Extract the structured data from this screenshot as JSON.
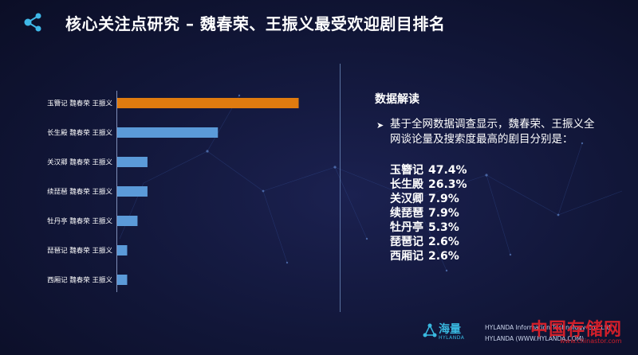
{
  "header": {
    "title": "核心关注点研究 – 魏春荣、王振义最受欢迎剧目排名"
  },
  "colors": {
    "highlight_bar": "#df7b0f",
    "default_bar": "#5b9ad8",
    "accent": "#39b9e0"
  },
  "chart_data": {
    "type": "bar",
    "orientation": "horizontal",
    "categories": [
      "玉簪记 魏春荣 王振义",
      "长生殿 魏春荣 王振义",
      "关汉卿 魏春荣 王振义",
      "续琵琶 魏春荣 王振义",
      "牡丹亭 魏春荣 王振义",
      "琵琶记 魏春荣 王振义",
      "西厢记 魏春荣 王振义"
    ],
    "values": [
      47.4,
      26.3,
      7.9,
      7.9,
      5.3,
      2.6,
      2.6
    ],
    "xlim": [
      0,
      50
    ],
    "grid": false,
    "highlight_index": 0
  },
  "panel": {
    "heading": "数据解读",
    "bullet_icon": "arrow-right-icon",
    "intro": "基于全网数据调查显示，魏春荣、王振义全网谈论量及搜索度最高的剧目分别是：",
    "items": [
      {
        "name": "玉簪记",
        "value": "47.4%"
      },
      {
        "name": "长生殿",
        "value": "26.3%"
      },
      {
        "name": "关汉卿",
        "value": "7.9%"
      },
      {
        "name": "续琵琶",
        "value": "7.9%"
      },
      {
        "name": "牡丹亭",
        "value": "5.3%"
      },
      {
        "name": "琵琶记",
        "value": "2.6%"
      },
      {
        "name": "西厢记",
        "value": "2.6%"
      }
    ]
  },
  "footer": {
    "brand_cn": "海量",
    "brand_en": "HYLANDA",
    "company": "HYLANDA Information Technology Co., Ltd",
    "site": "HYLANDA (WWW.HYLANDA.COM)"
  },
  "watermark": {
    "text": "中国存储网",
    "url": "www.chinastor.com"
  }
}
